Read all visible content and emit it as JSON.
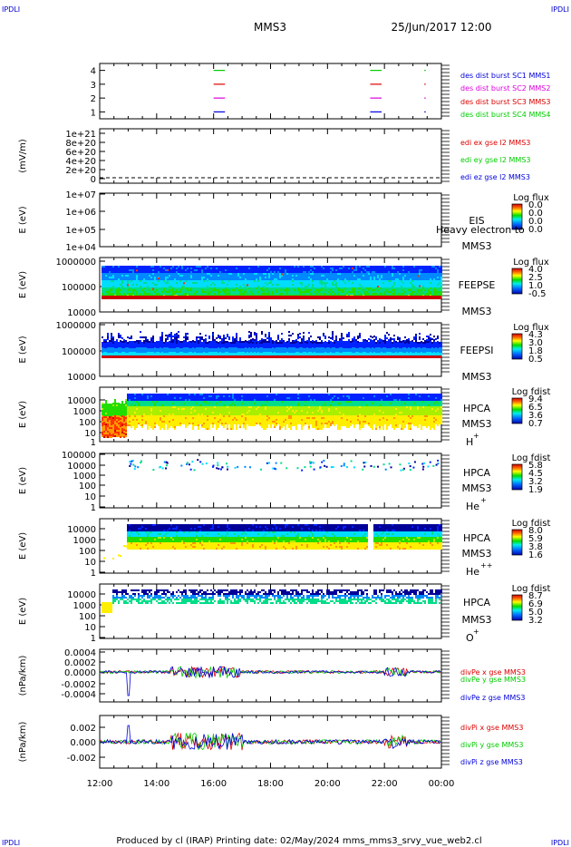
{
  "corner_marks": {
    "top_left": "IPDLI",
    "top_right": "IPDLI",
    "bottom_left": "IPDLI",
    "bottom_right": "IPDLI"
  },
  "header": {
    "spacecraft": "MMS3",
    "datetime": "25/Jun/2017 12:00"
  },
  "footer": {
    "text": "Produced by cl (IRAP)   Printing date: 02/May/2024   mms_mms3_srvy_vue_web2.cl"
  },
  "colors": {
    "blue": "#0000dd",
    "magenta": "#dd00dd",
    "red": "#dd0000",
    "green": "#00cc00",
    "trace": "#000000"
  },
  "chart_data": [
    {
      "type": "line",
      "panel": "burst",
      "ylim": [
        0.5,
        4.5
      ],
      "yticks": [
        "1",
        "2",
        "3",
        "4"
      ],
      "legend": [
        {
          "text": "des dist burst SC1 MMS1",
          "color": "#0000dd"
        },
        {
          "text": "des dist burst SC2 MMS2",
          "color": "#dd00dd"
        },
        {
          "text": "des dist burst SC3 MMS3",
          "color": "#dd0000"
        },
        {
          "text": "des dist burst SC4 MMS4",
          "color": "#00cc00"
        }
      ],
      "intervals": [
        [
          16.0,
          16.4
        ],
        [
          21.5,
          21.9
        ],
        [
          23.4,
          23.45
        ]
      ]
    },
    {
      "type": "line",
      "panel": "edi",
      "ylabel": "(mV/m)",
      "yticks": [
        "0",
        "2e+20",
        "4e+20",
        "6e+20",
        "8e+20",
        "1e+21"
      ],
      "legend": [
        {
          "text": "edi ex gse l2 MMS3",
          "color": "#dd0000"
        },
        {
          "text": "edi ey gse l2 MMS3",
          "color": "#00cc00"
        },
        {
          "text": "edi ez gse l2 MMS3",
          "color": "#0000dd"
        }
      ]
    },
    {
      "type": "heatmap",
      "panel": "eis",
      "ylabel": "E (eV)",
      "yticks": [
        "1e+04",
        "1e+05",
        "1e+06",
        "1e+07"
      ],
      "labels": [
        "EIS",
        "MMS3"
      ],
      "overlay_text": "Heavy electron to",
      "colorbar": {
        "title": "Log flux",
        "ticks": [
          "0.0",
          "0.0",
          "0.0",
          "0.0"
        ]
      }
    },
    {
      "type": "heatmap",
      "panel": "feepse",
      "ylabel": "E (eV)",
      "yticks": [
        "10000",
        "100000",
        "1000000"
      ],
      "labels": [
        "FEEPSE",
        "MMS3"
      ],
      "colorbar": {
        "title": "Log flux",
        "ticks": [
          "4.0",
          "2.5",
          "1.0",
          "-0.5"
        ]
      }
    },
    {
      "type": "heatmap",
      "panel": "feepsi",
      "ylabel": "E (eV)",
      "yticks": [
        "10000",
        "100000",
        "1000000"
      ],
      "labels": [
        "FEEPSI",
        "MMS3"
      ],
      "colorbar": {
        "title": "Log flux",
        "ticks": [
          "4.3",
          "3.0",
          "1.8",
          "0.5"
        ]
      }
    },
    {
      "type": "heatmap",
      "panel": "hpca_h",
      "ylabel": "E (eV)",
      "yticks": [
        "1",
        "10",
        "100",
        "1000",
        "10000"
      ],
      "labels": [
        "HPCA",
        "MMS3"
      ],
      "species": "H",
      "charge": "+",
      "colorbar": {
        "title": "Log fdist",
        "ticks": [
          "9.4",
          "6.5",
          "3.6",
          "0.7"
        ]
      }
    },
    {
      "type": "heatmap",
      "panel": "hpca_he",
      "ylabel": "E (eV)",
      "yticks": [
        "1",
        "10",
        "100",
        "1000",
        "10000",
        "100000"
      ],
      "labels": [
        "HPCA",
        "MMS3"
      ],
      "species": "He",
      "charge": "+",
      "colorbar": {
        "title": "Log fdist",
        "ticks": [
          "5.8",
          "4.5",
          "3.2",
          "1.9"
        ]
      }
    },
    {
      "type": "heatmap",
      "panel": "hpca_hepp",
      "ylabel": "E (eV)",
      "yticks": [
        "1",
        "10",
        "100",
        "1000",
        "10000"
      ],
      "labels": [
        "HPCA",
        "MMS3"
      ],
      "species": "He",
      "charge": "++",
      "colorbar": {
        "title": "Log fdist",
        "ticks": [
          "8.0",
          "5.9",
          "3.8",
          "1.6"
        ]
      }
    },
    {
      "type": "heatmap",
      "panel": "hpca_o",
      "ylabel": "E (eV)",
      "yticks": [
        "1",
        "10",
        "100",
        "1000",
        "10000"
      ],
      "labels": [
        "HPCA",
        "MMS3"
      ],
      "species": "O",
      "charge": "+",
      "colorbar": {
        "title": "Log fdist",
        "ticks": [
          "8.7",
          "6.9",
          "5.0",
          "3.2"
        ]
      }
    },
    {
      "type": "line",
      "panel": "divpe",
      "ylabel": "(nPa/km)",
      "ylim": [
        -0.0006,
        0.0004
      ],
      "yticks": [
        "-0.0004",
        "-0.0002",
        "0.0000",
        "0.0002",
        "0.0004"
      ],
      "legend": [
        {
          "text": "divPe x gse MMS3",
          "color": "#dd0000"
        },
        {
          "text": "divPe y gse MMS3",
          "color": "#00cc00"
        },
        {
          "text": "divPe z gse MMS3",
          "color": "#0000dd"
        }
      ]
    },
    {
      "type": "line",
      "panel": "divpi",
      "ylabel": "(nPa/km)",
      "ylim": [
        -0.003,
        0.003
      ],
      "yticks": [
        "-0.002",
        "0.000",
        "0.002"
      ],
      "legend": [
        {
          "text": "divPi x gse MMS3",
          "color": "#dd0000"
        },
        {
          "text": "divPi y gse MMS3",
          "color": "#00cc00"
        },
        {
          "text": "divPi z gse MMS3",
          "color": "#0000dd"
        }
      ]
    }
  ],
  "time_axis": {
    "ticks": [
      "12:00",
      "14:00",
      "16:00",
      "18:00",
      "20:00",
      "22:00",
      "00:00"
    ]
  }
}
